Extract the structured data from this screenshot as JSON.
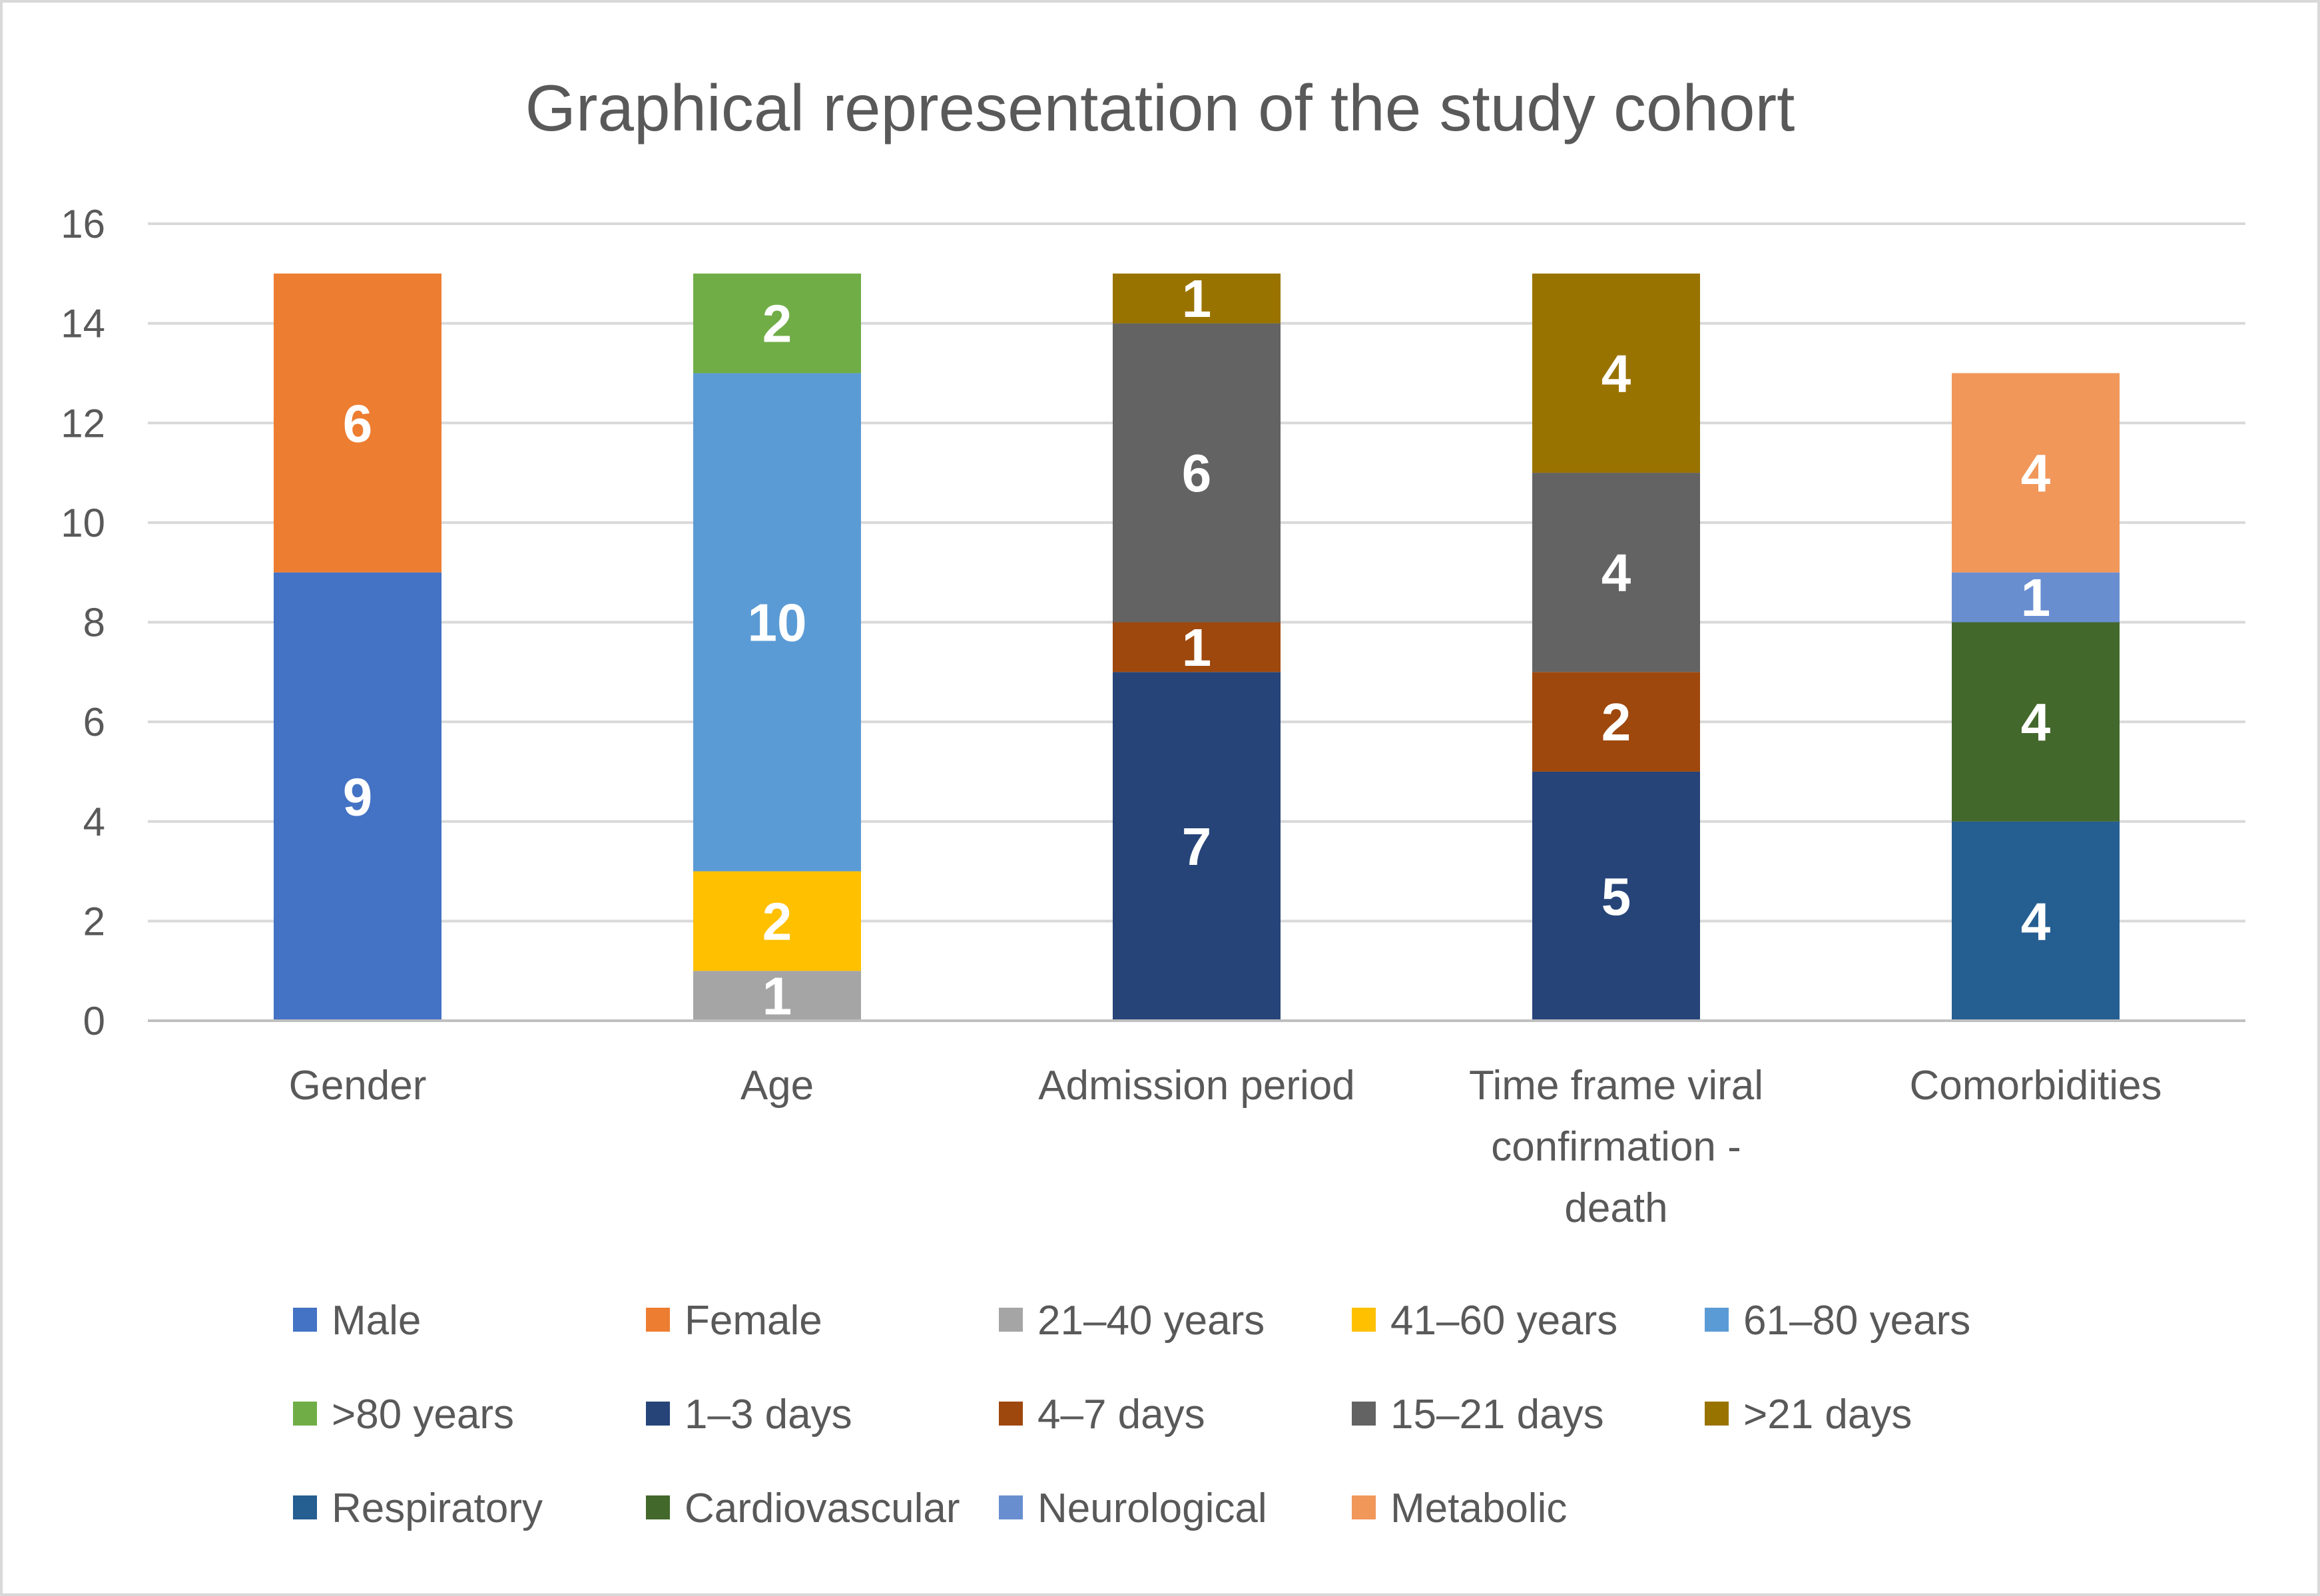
{
  "chart_data": {
    "type": "bar",
    "stacked": true,
    "title": "Graphical representation of the study cohort",
    "xlabel": "",
    "ylabel": "",
    "ylim": [
      0,
      16
    ],
    "yticks": [
      0,
      2,
      4,
      6,
      8,
      10,
      12,
      14,
      16
    ],
    "grid": true,
    "legend_position": "bottom",
    "categories": [
      {
        "label": "Gender",
        "lines": [
          "Gender"
        ]
      },
      {
        "label": "Age",
        "lines": [
          "Age"
        ]
      },
      {
        "label": "Admission period",
        "lines": [
          "Admission period"
        ]
      },
      {
        "label": "Time frame viral confirmation - death",
        "lines": [
          "Time frame viral",
          "confirmation -",
          "death"
        ]
      },
      {
        "label": "Comorbidities",
        "lines": [
          "Comorbidities"
        ]
      }
    ],
    "series": [
      {
        "name": "Male",
        "color": "#4472C4",
        "values": [
          9,
          0,
          0,
          0,
          0
        ]
      },
      {
        "name": "Female",
        "color": "#ED7D31",
        "values": [
          6,
          0,
          0,
          0,
          0
        ]
      },
      {
        "name": "21–40 years",
        "color": "#A5A5A5",
        "values": [
          0,
          1,
          0,
          0,
          0
        ]
      },
      {
        "name": "41–60 years",
        "color": "#FFC000",
        "values": [
          0,
          2,
          0,
          0,
          0
        ]
      },
      {
        "name": "61–80 years",
        "color": "#5B9BD5",
        "values": [
          0,
          10,
          0,
          0,
          0
        ]
      },
      {
        "name": ">80 years",
        "color": "#70AD47",
        "values": [
          0,
          2,
          0,
          0,
          0
        ]
      },
      {
        "name": "1–3 days",
        "color": "#264478",
        "values": [
          0,
          0,
          7,
          5,
          0
        ]
      },
      {
        "name": "4–7 days",
        "color": "#9E480E",
        "values": [
          0,
          0,
          1,
          2,
          0
        ]
      },
      {
        "name": "15–21 days",
        "color": "#636363",
        "values": [
          0,
          0,
          6,
          4,
          0
        ]
      },
      {
        "name": ">21 days",
        "color": "#997300",
        "values": [
          0,
          0,
          1,
          4,
          0
        ]
      },
      {
        "name": "Respiratory",
        "color": "#255E91",
        "values": [
          0,
          0,
          0,
          0,
          4
        ]
      },
      {
        "name": "Cardiovascular",
        "color": "#43682B",
        "values": [
          0,
          0,
          0,
          0,
          4
        ]
      },
      {
        "name": "Neurological",
        "color": "#698ED0",
        "values": [
          0,
          0,
          0,
          0,
          1
        ]
      },
      {
        "name": "Metabolic",
        "color": "#F1975A",
        "values": [
          0,
          0,
          0,
          0,
          4
        ]
      }
    ]
  },
  "colors": {
    "frame": "#D9D9D9",
    "gridline": "#D9D9D9",
    "axis": "#BFBFBF",
    "text": "#595959",
    "data_label": "#FFFFFF"
  }
}
